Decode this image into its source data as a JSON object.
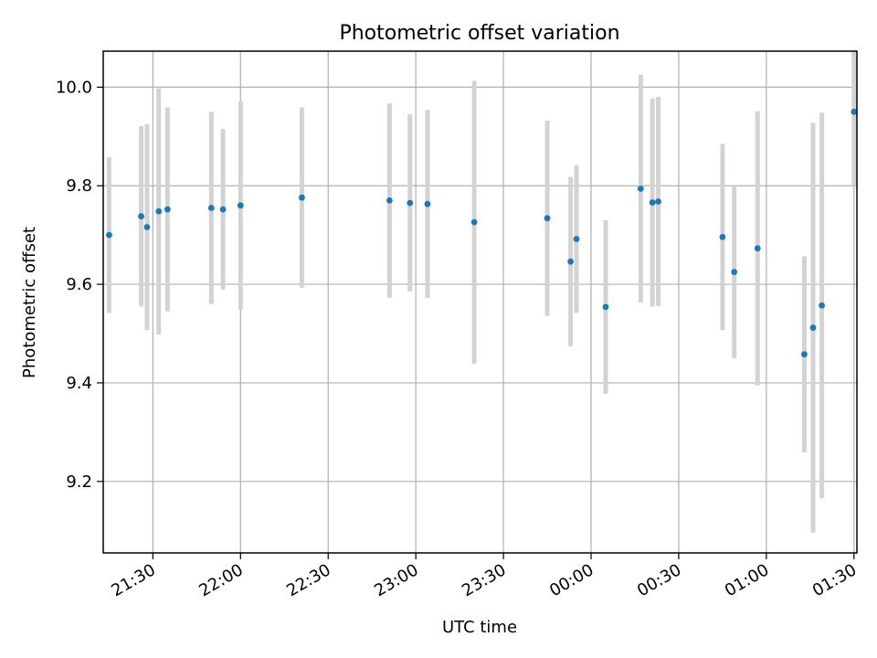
{
  "chart_data": {
    "type": "scatter",
    "title": "Photometric offset variation",
    "xlabel": "UTC time",
    "ylabel": "Photometric offset",
    "grid": true,
    "x_ticks": [
      {
        "time": "21:30",
        "label": "21:30"
      },
      {
        "time": "22:00",
        "label": "22:00"
      },
      {
        "time": "22:30",
        "label": "22:30"
      },
      {
        "time": "23:00",
        "label": "23:00"
      },
      {
        "time": "23:30",
        "label": "23:30"
      },
      {
        "time": "00:00",
        "label": "00:00"
      },
      {
        "time": "00:30",
        "label": "00:30"
      },
      {
        "time": "01:00",
        "label": "01:00"
      },
      {
        "time": "01:30",
        "label": "01:30"
      }
    ],
    "y_ticks": [
      9.2,
      9.4,
      9.6,
      9.8,
      10.0
    ],
    "y_tick_labels": [
      "9.2",
      "9.4",
      "9.6",
      "9.8",
      "10.0"
    ],
    "xlim": [
      "21:13",
      "01:31"
    ],
    "ylim": [
      9.055,
      10.073
    ],
    "marker_color": "#1f77b4",
    "errorbar_color": "#d3d3d3",
    "grid_color": "#b0b0b0",
    "points": [
      {
        "time": "21:15",
        "y": 9.7,
        "yerr": 0.158
      },
      {
        "time": "21:26",
        "y": 9.738,
        "yerr": 0.183
      },
      {
        "time": "21:28",
        "y": 9.716,
        "yerr": 0.209
      },
      {
        "time": "21:32",
        "y": 9.748,
        "yerr": 0.25
      },
      {
        "time": "21:35",
        "y": 9.752,
        "yerr": 0.207
      },
      {
        "time": "21:50",
        "y": 9.755,
        "yerr": 0.195
      },
      {
        "time": "21:54",
        "y": 9.752,
        "yerr": 0.163
      },
      {
        "time": "22:00",
        "y": 9.76,
        "yerr": 0.212
      },
      {
        "time": "22:21",
        "y": 9.776,
        "yerr": 0.183
      },
      {
        "time": "22:51",
        "y": 9.77,
        "yerr": 0.197
      },
      {
        "time": "22:58",
        "y": 9.765,
        "yerr": 0.18
      },
      {
        "time": "23:04",
        "y": 9.763,
        "yerr": 0.191
      },
      {
        "time": "23:20",
        "y": 9.726,
        "yerr": 0.287
      },
      {
        "time": "23:45",
        "y": 9.734,
        "yerr": 0.198
      },
      {
        "time": "23:53",
        "y": 9.646,
        "yerr": 0.172
      },
      {
        "time": "23:55",
        "y": 9.692,
        "yerr": 0.15
      },
      {
        "time": "00:05",
        "y": 9.554,
        "yerr": 0.176
      },
      {
        "time": "00:17",
        "y": 9.794,
        "yerr": 0.231
      },
      {
        "time": "00:21",
        "y": 9.766,
        "yerr": 0.211
      },
      {
        "time": "00:23",
        "y": 9.768,
        "yerr": 0.212
      },
      {
        "time": "00:45",
        "y": 9.696,
        "yerr": 0.189
      },
      {
        "time": "00:49",
        "y": 9.625,
        "yerr": 0.175
      },
      {
        "time": "00:57",
        "y": 9.673,
        "yerr": 0.278
      },
      {
        "time": "01:13",
        "y": 9.458,
        "yerr": 0.199
      },
      {
        "time": "01:16",
        "y": 9.512,
        "yerr": 0.416
      },
      {
        "time": "01:19",
        "y": 9.557,
        "yerr": 0.391
      },
      {
        "time": "01:30",
        "y": 9.95,
        "yerr": 0.15
      }
    ]
  }
}
